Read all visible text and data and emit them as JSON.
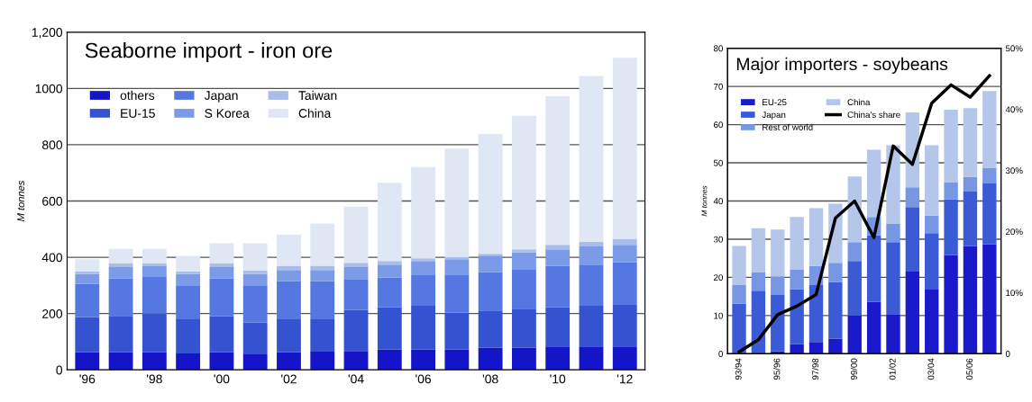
{
  "chart_data": [
    {
      "type": "bar",
      "title": "Seaborne import - iron ore",
      "ylabel": "M tonnes",
      "stacked": true,
      "grid": "y",
      "legend": "top left",
      "categories": [
        "'96",
        null,
        "'98",
        null,
        "'00",
        null,
        "'02",
        null,
        "'04",
        null,
        "'06",
        null,
        "'08",
        null,
        "'10",
        null,
        "'12"
      ],
      "ylim": [
        0,
        1200
      ],
      "yticks": [
        0,
        200,
        400,
        600,
        800,
        1000,
        {
          "value": 1200,
          "label": "1,200"
        }
      ],
      "series": [
        {
          "name": "others",
          "color": "#1414c8",
          "values": [
            62,
            62,
            62,
            58,
            62,
            55,
            62,
            65,
            67,
            72,
            72,
            72,
            79,
            79,
            83,
            83,
            83
          ]
        },
        {
          "name": "EU-15",
          "color": "#3553d0",
          "values": [
            126,
            130,
            138,
            122,
            128,
            113,
            118,
            115,
            146,
            150,
            156,
            131,
            132,
            138,
            139,
            145,
            148
          ]
        },
        {
          "name": "Japan",
          "color": "#5577e2",
          "values": [
            118,
            133,
            130,
            120,
            135,
            132,
            135,
            135,
            107,
            106,
            108,
            136,
            136,
            141,
            147,
            146,
            152
          ]
        },
        {
          "name": "S Korea",
          "color": "#7b9be8",
          "values": [
            34,
            40,
            38,
            40,
            40,
            40,
            40,
            40,
            45,
            46,
            51,
            54,
            59,
            59,
            59,
            65,
            61
          ]
        },
        {
          "name": "Taiwan",
          "color": "#a9bdea",
          "values": [
            10,
            13,
            10,
            10,
            13,
            12,
            15,
            15,
            15,
            13,
            9,
            7,
            6,
            11,
            16,
            16,
            22
          ]
        },
        {
          "name": "China",
          "color": "#dfe6f4",
          "values": [
            43,
            52,
            52,
            55,
            72,
            98,
            110,
            150,
            200,
            278,
            325,
            386,
            426,
            475,
            528,
            589,
            643
          ]
        }
      ]
    },
    {
      "type": "bar",
      "title": "Major importers - soybeans",
      "ylabel": "M tonnes",
      "stacked": true,
      "grid": "y",
      "legend": "top left",
      "categories": [
        "93/94",
        null,
        "95/96",
        null,
        "97/98",
        null,
        "99/00",
        null,
        "01/02",
        null,
        "03/04",
        null,
        "05/06",
        null
      ],
      "ylim": [
        0,
        80
      ],
      "yticks": [
        0,
        10,
        20,
        30,
        40,
        50,
        60,
        70,
        80
      ],
      "y2lim": [
        0,
        50
      ],
      "y2ticks": [
        {
          "value": 0,
          "label": "0"
        },
        {
          "value": 10,
          "label": "10%"
        },
        {
          "value": 20,
          "label": "20%"
        },
        {
          "value": 30,
          "label": "30%"
        },
        {
          "value": 40,
          "label": "40%"
        },
        {
          "value": 50,
          "label": "50%"
        }
      ],
      "series": [
        {
          "name": "EU-25",
          "color": "#1a1acc",
          "values": [
            0,
            0,
            0.6,
            2.5,
            3.1,
            3.9,
            10,
            13.6,
            10.4,
            21.5,
            16.8,
            25.9,
            28.2,
            28.7
          ]
        },
        {
          "name": "Japan",
          "color": "#3a5ad6",
          "values": [
            13.1,
            16.5,
            14.8,
            14.4,
            14.9,
            14.9,
            14.3,
            17.4,
            18.8,
            16.9,
            14.8,
            14.5,
            14.3,
            15.9
          ]
        },
        {
          "name": "Rest of world",
          "color": "#7797e5",
          "values": [
            4.9,
            4.8,
            4.9,
            5.1,
            5,
            5,
            4.9,
            4.8,
            4.9,
            5.2,
            4.6,
            4.4,
            3.8,
            4
          ]
        },
        {
          "name": "China",
          "color": "#b4c6ea",
          "values": [
            10.2,
            11.6,
            12.2,
            13.8,
            15.1,
            15.5,
            17.2,
            17.6,
            20.5,
            19.6,
            18.4,
            19.1,
            18,
            20.2
          ]
        },
        {
          "name": "China's share",
          "type": "line",
          "axis": "y2",
          "color": "#000000",
          "values": [
            0.3,
            2.3,
            6.4,
            7.8,
            9.7,
            22.2,
            25,
            19,
            34,
            31,
            41,
            44,
            42,
            45.5
          ]
        }
      ]
    }
  ]
}
